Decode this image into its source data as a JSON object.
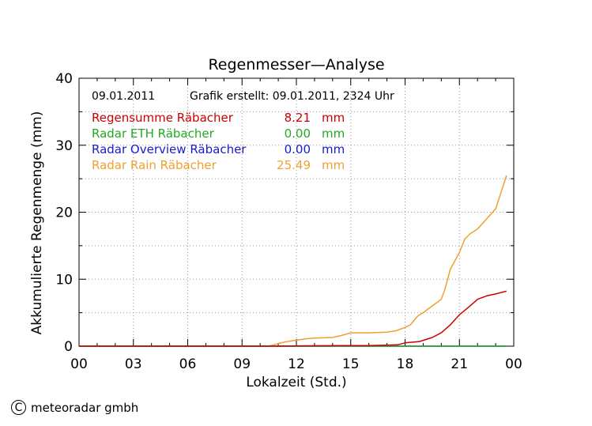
{
  "chart_data": {
    "type": "line",
    "title": "Regenmesser—Analyse",
    "xlabel": "Lokalzeit (Std.)",
    "ylabel": "Akkumulierte Regenmenge (mm)",
    "xlim": [
      0,
      24
    ],
    "ylim": [
      0,
      40
    ],
    "x_ticks": [
      "00",
      "03",
      "06",
      "09",
      "12",
      "15",
      "18",
      "21",
      "00"
    ],
    "y_ticks": [
      "0",
      "10",
      "20",
      "30",
      "40"
    ],
    "grid": true,
    "info_date": "09.01.2011",
    "info_created": "Grafik erstellt: 09.01.2011, 2324 Uhr",
    "legend_placement": "top-left",
    "series": [
      {
        "name": "Regensumme Räbacher",
        "value_label": "8.21",
        "unit": "mm",
        "color": "#cc0000",
        "x": [
          0,
          10.5,
          14.5,
          16.0,
          17.6,
          18.0,
          18.8,
          19.5,
          20.0,
          20.5,
          21.0,
          21.5,
          22.0,
          22.5,
          23.0,
          23.6
        ],
        "y": [
          0,
          0,
          0.1,
          0.1,
          0.2,
          0.5,
          0.7,
          1.3,
          2.0,
          3.2,
          4.7,
          5.8,
          7.0,
          7.5,
          7.8,
          8.21
        ]
      },
      {
        "name": "Radar ETH Räbacher",
        "value_label": "0.00",
        "unit": "mm",
        "color": "#22aa22",
        "x": [
          0,
          23.6
        ],
        "y": [
          0,
          0
        ]
      },
      {
        "name": "Radar Overview Räbacher",
        "value_label": "0.00",
        "unit": "mm",
        "color": "#1a1acc",
        "x": [
          0,
          23.6
        ],
        "y": [
          0,
          0
        ]
      },
      {
        "name": "Radar Rain Räbacher",
        "value_label": "25.49",
        "unit": "mm",
        "color": "#f0a030",
        "x": [
          0,
          10.5,
          11.0,
          11.5,
          12.0,
          12.5,
          13.0,
          14.0,
          14.5,
          15.0,
          16.0,
          17.0,
          17.5,
          18.0,
          18.3,
          18.7,
          19.0,
          19.5,
          20.0,
          20.2,
          20.5,
          21.0,
          21.3,
          21.6,
          22.0,
          22.5,
          23.0,
          23.3,
          23.6
        ],
        "y": [
          0,
          0,
          0.4,
          0.7,
          0.9,
          1.1,
          1.2,
          1.3,
          1.6,
          2.0,
          2.0,
          2.1,
          2.3,
          2.8,
          3.2,
          4.5,
          5.0,
          6.0,
          7.0,
          8.5,
          11.5,
          14.0,
          16.0,
          16.8,
          17.5,
          19.0,
          20.5,
          23.0,
          25.49
        ]
      }
    ]
  },
  "footer": {
    "copyright_symbol": "C",
    "company": "meteoradar gmbh"
  }
}
